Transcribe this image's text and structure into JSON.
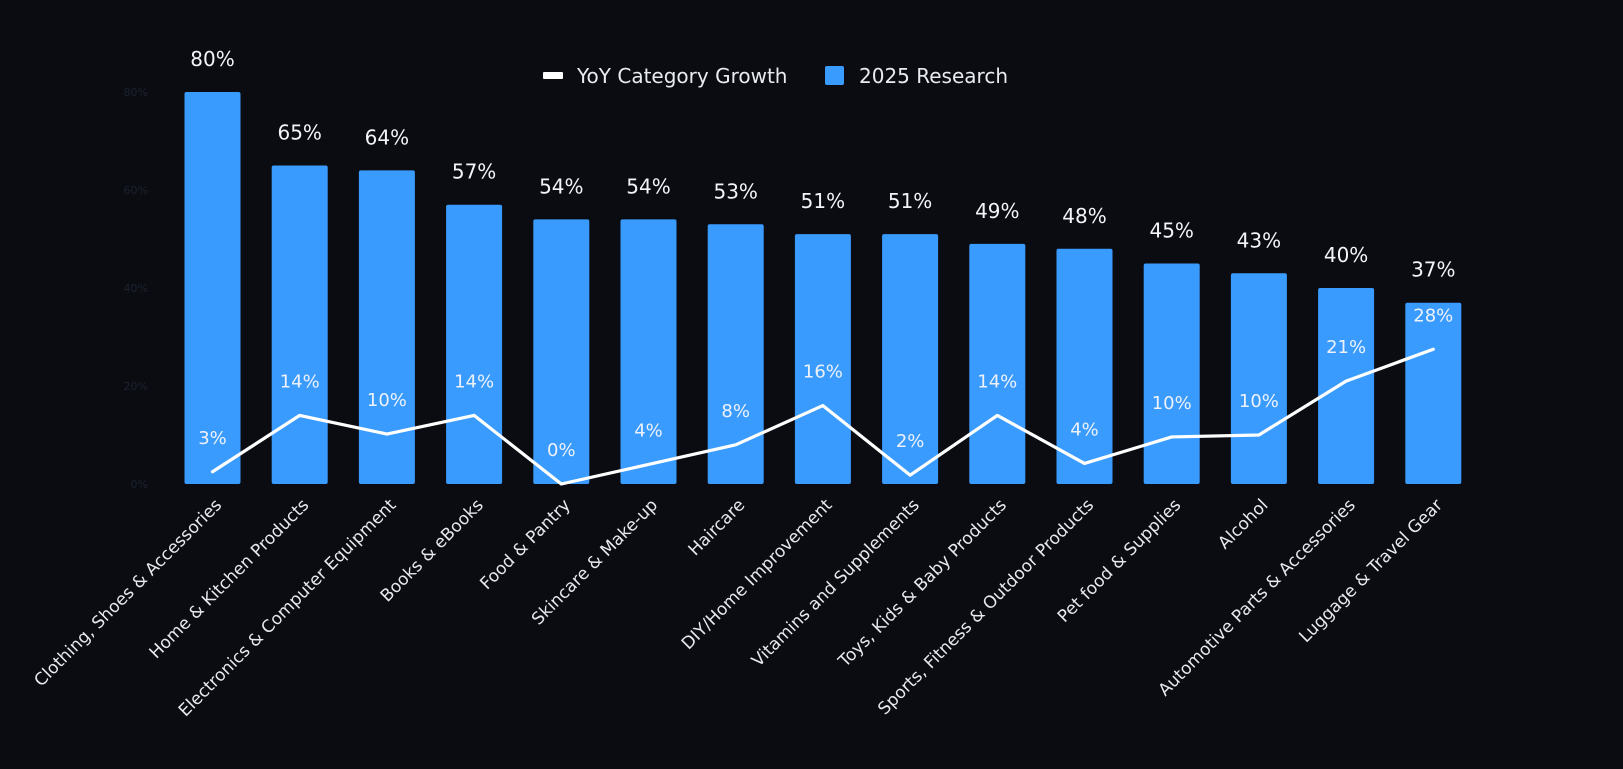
{
  "chart_data": {
    "type": "bar",
    "title": "",
    "xlabel": "",
    "ylabel": "",
    "ylim": [
      0,
      80
    ],
    "y_ticks": [
      "0%",
      "20%",
      "40%",
      "60%",
      "80%"
    ],
    "grid": false,
    "legend_position": "top-center",
    "categories": [
      "Clothing, Shoes & Accessories",
      "Home & Kitchen Products",
      "Electronics & Computer Equipment",
      "Books & eBooks",
      "Food & Pantry",
      "Skincare & Make-up",
      "Haircare",
      "DIY/Home Improvement",
      "Vitamins and Supplements",
      "Toys, Kids & Baby Products",
      "Sports, Fitness & Outdoor Products",
      "Pet food & Supplies",
      "Alcohol",
      "Automotive Parts & Accessories",
      "Luggage & Travel Gear"
    ],
    "series": [
      {
        "name": "2025 Research",
        "type": "bar",
        "color": "#3a9bff",
        "values": [
          80,
          65,
          64,
          57,
          54,
          54,
          53,
          51,
          51,
          49,
          48,
          45,
          43,
          40,
          37
        ],
        "labels": [
          "80%",
          "65%",
          "64%",
          "57%",
          "54%",
          "54%",
          "53%",
          "51%",
          "51%",
          "49%",
          "48%",
          "45%",
          "43%",
          "40%",
          "37%"
        ]
      },
      {
        "name": "YoY Category Growth",
        "type": "line",
        "color": "#ffffff",
        "values": [
          2.5,
          14,
          10.2,
          14,
          0,
          4,
          8,
          16,
          1.8,
          14,
          4.2,
          9.6,
          10,
          21,
          27.5
        ],
        "labels": [
          "3%",
          "14%",
          "10%",
          "14%",
          "0%",
          "4%",
          "8%",
          "16%",
          "2%",
          "14%",
          "4%",
          "10%",
          "10%",
          "21%",
          "28%"
        ]
      }
    ],
    "legend": [
      "YoY Category Growth",
      "2025 Research"
    ]
  }
}
